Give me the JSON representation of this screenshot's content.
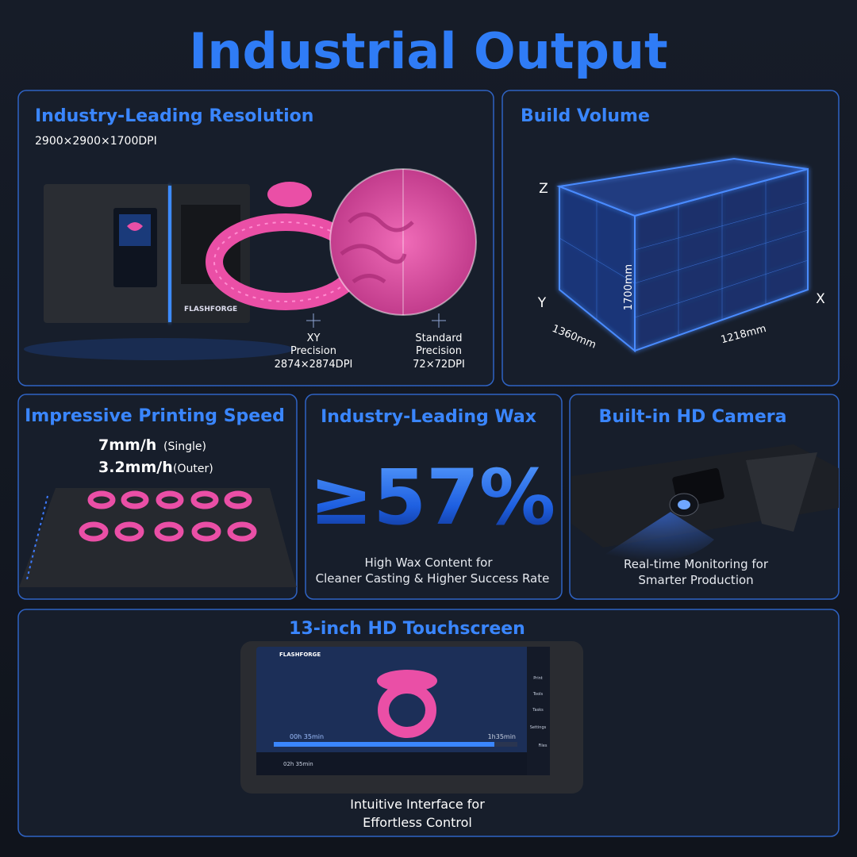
{
  "title": "Industrial Output",
  "resolution": {
    "heading": "Industry-Leading Resolution",
    "subtitle": "2900×2900×1700DPI",
    "brand": "FLASHFORGE",
    "xy": [
      "XY",
      "Precision",
      "2874×2874DPI"
    ],
    "standard": [
      "Standard",
      "Precision",
      "72×72DPI"
    ]
  },
  "volume": {
    "heading": "Build Volume",
    "axes": {
      "z": "Z",
      "y": "Y",
      "x": "X"
    },
    "height": "1700mm",
    "depth": "1360mm",
    "width": "1218mm"
  },
  "speed": {
    "heading": "Impressive Printing Speed",
    "single": {
      "value": "7mm/h",
      "note": "(Single)"
    },
    "outer": {
      "value": "3.2mm/h",
      "note": "(Outer)"
    }
  },
  "wax": {
    "heading": "Industry-Leading Wax",
    "figure": "≥57%",
    "lines": [
      "High Wax Content for",
      "Cleaner Casting & Higher Success Rate"
    ]
  },
  "camera": {
    "heading": "Built-in HD Camera",
    "lines": [
      "Real-time Monitoring for",
      "Smarter Production"
    ]
  },
  "touchscreen": {
    "heading": "13-inch HD Touchscreen",
    "screen": {
      "brand": "FLASHFORGE",
      "elapsed": "00h 35min",
      "remaining": "1h35min",
      "timer": "02h 35min",
      "menu": [
        "Print",
        "Tools",
        "Tasks",
        "Settings",
        "Files"
      ]
    },
    "lines": [
      "Intuitive Interface for",
      "Effortless Control"
    ]
  }
}
